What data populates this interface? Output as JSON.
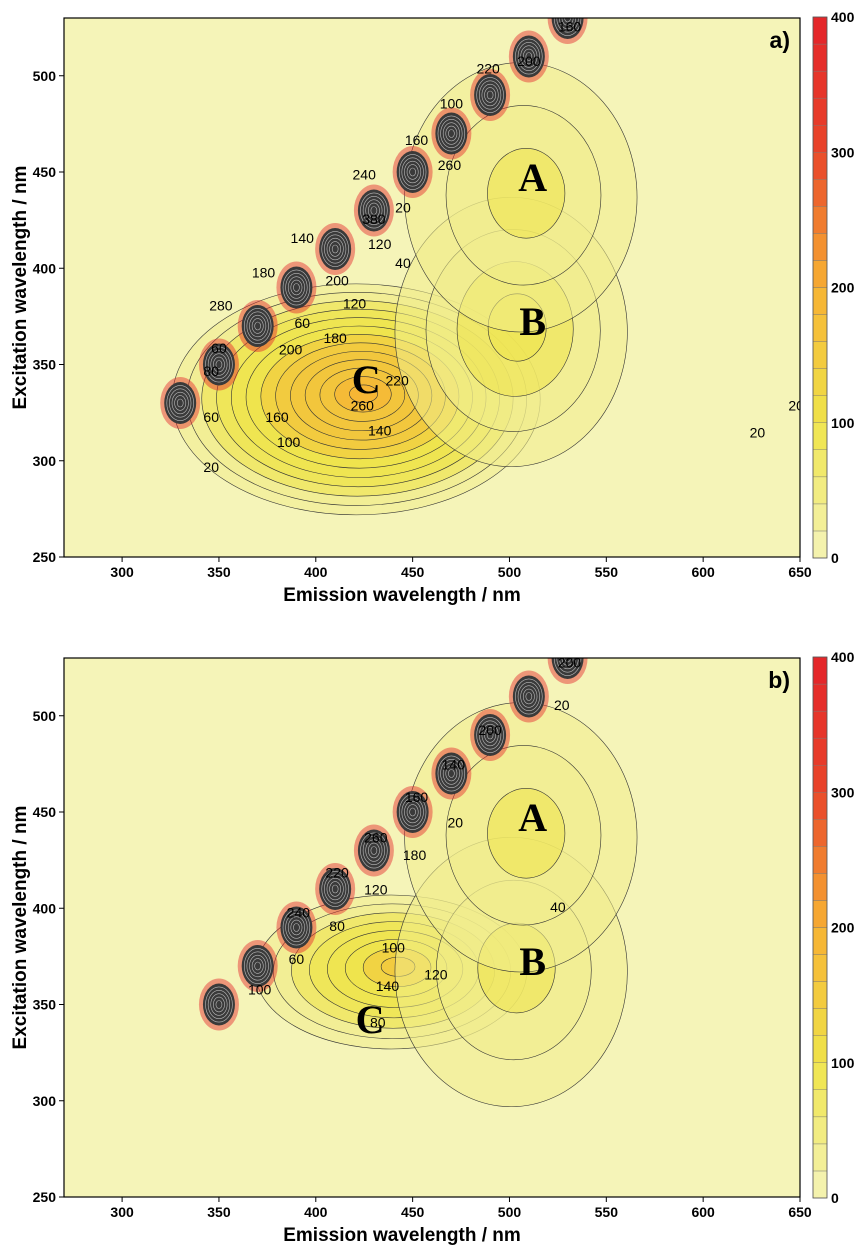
{
  "chart_data": [
    {
      "type": "heatmap",
      "panel_label": "a)",
      "xlabel": "Emission wavelength / nm",
      "ylabel": "Excitation wavelength / nm",
      "xlim": [
        270,
        650
      ],
      "ylim": [
        250,
        530
      ],
      "x_ticks": [
        300,
        350,
        400,
        450,
        500,
        550,
        600,
        650
      ],
      "y_ticks": [
        250,
        300,
        350,
        400,
        450,
        500
      ],
      "colorbar": {
        "min": 0,
        "max": 400,
        "ticks": [
          0,
          100,
          200,
          300,
          400
        ],
        "colors": [
          "#f5f4b8",
          "#efe44a",
          "#f7b233",
          "#e8452a",
          "#e4242a"
        ]
      },
      "regions": [
        {
          "label": "A",
          "x": 512,
          "y": 445
        },
        {
          "label": "B",
          "x": 512,
          "y": 370
        },
        {
          "label": "C",
          "x": 426,
          "y": 340
        }
      ],
      "peaks": [
        {
          "x": 425,
          "y": 335,
          "value": 265
        },
        {
          "x": 505,
          "y": 370,
          "value": 70
        },
        {
          "x": 510,
          "y": 440,
          "value": 45
        }
      ],
      "scatter_band": [
        {
          "x": 330,
          "y": 330
        },
        {
          "x": 350,
          "y": 350
        },
        {
          "x": 370,
          "y": 370
        },
        {
          "x": 390,
          "y": 390
        },
        {
          "x": 410,
          "y": 410
        },
        {
          "x": 430,
          "y": 430
        },
        {
          "x": 450,
          "y": 450
        },
        {
          "x": 470,
          "y": 470
        },
        {
          "x": 490,
          "y": 490
        },
        {
          "x": 510,
          "y": 510
        },
        {
          "x": 530,
          "y": 530
        }
      ],
      "contour_labels": [
        {
          "text": "20",
          "x": 346,
          "y": 296
        },
        {
          "text": "100",
          "x": 386,
          "y": 309
        },
        {
          "text": "140",
          "x": 433,
          "y": 315
        },
        {
          "text": "160",
          "x": 380,
          "y": 322
        },
        {
          "text": "260",
          "x": 424,
          "y": 328
        },
        {
          "text": "220",
          "x": 442,
          "y": 341
        },
        {
          "text": "200",
          "x": 387,
          "y": 357
        },
        {
          "text": "180",
          "x": 410,
          "y": 363
        },
        {
          "text": "120",
          "x": 420,
          "y": 381
        },
        {
          "text": "40",
          "x": 445,
          "y": 402
        },
        {
          "text": "60",
          "x": 346,
          "y": 322
        },
        {
          "text": "80",
          "x": 346,
          "y": 346
        },
        {
          "text": "60",
          "x": 393,
          "y": 371
        },
        {
          "text": "200",
          "x": 411,
          "y": 393
        },
        {
          "text": "120",
          "x": 433,
          "y": 412
        },
        {
          "text": "20",
          "x": 445,
          "y": 431
        },
        {
          "text": "260",
          "x": 469,
          "y": 453
        },
        {
          "text": "20",
          "x": 628,
          "y": 314
        },
        {
          "text": "20",
          "x": 648,
          "y": 328
        },
        {
          "text": "60",
          "x": 350,
          "y": 358
        },
        {
          "text": "380",
          "x": 430,
          "y": 425
        },
        {
          "text": "240",
          "x": 425,
          "y": 448
        },
        {
          "text": "140",
          "x": 393,
          "y": 415
        },
        {
          "text": "180",
          "x": 373,
          "y": 397
        },
        {
          "text": "280",
          "x": 351,
          "y": 380
        },
        {
          "text": "160",
          "x": 452,
          "y": 466
        },
        {
          "text": "100",
          "x": 470,
          "y": 485
        },
        {
          "text": "220",
          "x": 489,
          "y": 503
        },
        {
          "text": "200",
          "x": 510,
          "y": 507
        },
        {
          "text": "160",
          "x": 531,
          "y": 525
        }
      ]
    },
    {
      "type": "heatmap",
      "panel_label": "b)",
      "xlabel": "Emission wavelength / nm",
      "ylabel": "Excitation wavelength / nm",
      "xlim": [
        270,
        650
      ],
      "ylim": [
        250,
        530
      ],
      "x_ticks": [
        300,
        350,
        400,
        450,
        500,
        550,
        600,
        650
      ],
      "y_ticks": [
        250,
        300,
        350,
        400,
        450,
        500
      ],
      "colorbar": {
        "min": 0,
        "max": 400,
        "ticks": [
          0,
          100,
          200,
          300,
          400
        ],
        "colors": [
          "#f5f4b8",
          "#efe44a",
          "#f7b233",
          "#e8452a",
          "#e4242a"
        ]
      },
      "regions": [
        {
          "label": "A",
          "x": 512,
          "y": 445
        },
        {
          "label": "B",
          "x": 512,
          "y": 370
        },
        {
          "label": "C",
          "x": 428,
          "y": 340
        }
      ],
      "peaks": [
        {
          "x": 443,
          "y": 370,
          "value": 150
        },
        {
          "x": 505,
          "y": 370,
          "value": 55
        },
        {
          "x": 510,
          "y": 440,
          "value": 45
        }
      ],
      "scatter_band": [
        {
          "x": 350,
          "y": 350
        },
        {
          "x": 370,
          "y": 370
        },
        {
          "x": 390,
          "y": 390
        },
        {
          "x": 410,
          "y": 410
        },
        {
          "x": 430,
          "y": 430
        },
        {
          "x": 450,
          "y": 450
        },
        {
          "x": 470,
          "y": 470
        },
        {
          "x": 490,
          "y": 490
        },
        {
          "x": 510,
          "y": 510
        },
        {
          "x": 530,
          "y": 530
        }
      ],
      "contour_labels": [
        {
          "text": "100",
          "x": 371,
          "y": 357
        },
        {
          "text": "60",
          "x": 390,
          "y": 373
        },
        {
          "text": "80",
          "x": 411,
          "y": 390
        },
        {
          "text": "80",
          "x": 432,
          "y": 340
        },
        {
          "text": "140",
          "x": 437,
          "y": 359
        },
        {
          "text": "120",
          "x": 462,
          "y": 365
        },
        {
          "text": "100",
          "x": 440,
          "y": 379
        },
        {
          "text": "40",
          "x": 525,
          "y": 400
        },
        {
          "text": "120",
          "x": 431,
          "y": 409
        },
        {
          "text": "180",
          "x": 451,
          "y": 427
        },
        {
          "text": "20",
          "x": 472,
          "y": 444
        },
        {
          "text": "240",
          "x": 391,
          "y": 397
        },
        {
          "text": "220",
          "x": 411,
          "y": 418
        },
        {
          "text": "260",
          "x": 431,
          "y": 436
        },
        {
          "text": "160",
          "x": 452,
          "y": 457
        },
        {
          "text": "140",
          "x": 471,
          "y": 474
        },
        {
          "text": "200",
          "x": 490,
          "y": 492
        },
        {
          "text": "20",
          "x": 527,
          "y": 505
        },
        {
          "text": "200",
          "x": 531,
          "y": 527
        }
      ]
    }
  ]
}
